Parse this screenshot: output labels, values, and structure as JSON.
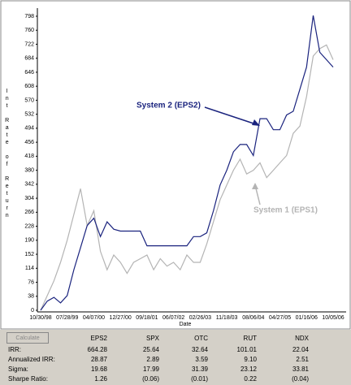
{
  "chart_data": {
    "type": "line",
    "x_label": "Date",
    "y_label": "Int Rate of Return",
    "categories": [
      "10/30/98",
      null,
      null,
      null,
      "07/28/99",
      null,
      null,
      null,
      "04/07/00",
      null,
      null,
      null,
      "12/27/00",
      null,
      null,
      null,
      "09/18/01",
      null,
      null,
      null,
      "06/07/02",
      null,
      null,
      null,
      "02/26/03",
      null,
      null,
      null,
      "11/18/03",
      null,
      null,
      null,
      "08/06/04",
      null,
      null,
      null,
      "04/27/05",
      null,
      null,
      null,
      "01/16/06",
      null,
      null,
      null,
      "10/05/06"
    ],
    "series": [
      {
        "name": "System 1 (EPS1)",
        "color": "#b4b4b4",
        "values": [
          0,
          40,
          80,
          130,
          190,
          260,
          330,
          230,
          270,
          160,
          110,
          150,
          130,
          100,
          130,
          140,
          150,
          110,
          140,
          120,
          130,
          110,
          150,
          130,
          130,
          180,
          240,
          300,
          340,
          380,
          410,
          370,
          380,
          400,
          360,
          380,
          400,
          420,
          480,
          500,
          580,
          690,
          710,
          720,
          680
        ]
      },
      {
        "name": "System 2 (EPS2)",
        "color": "#1a237e",
        "values": [
          0,
          25,
          35,
          20,
          40,
          110,
          170,
          230,
          250,
          200,
          240,
          220,
          215,
          215,
          215,
          215,
          175,
          175,
          175,
          175,
          175,
          175,
          175,
          200,
          200,
          210,
          270,
          340,
          380,
          430,
          450,
          450,
          420,
          520,
          520,
          490,
          490,
          530,
          540,
          600,
          660,
          800,
          700,
          680,
          660
        ]
      }
    ],
    "ylim": [
      0,
      820
    ],
    "yticks": [
      0,
      38,
      76,
      114,
      152,
      190,
      228,
      266,
      304,
      342,
      380,
      418,
      456,
      494,
      532,
      570,
      608,
      646,
      684,
      722,
      760,
      798
    ]
  },
  "table": {
    "button": "Calculate",
    "header": [
      "EPS2",
      "SPX",
      "OTC",
      "RUT",
      "NDX"
    ],
    "rows": [
      [
        "IRR:",
        "664.28",
        "25.64",
        "32.64",
        "101.01",
        "22.04"
      ],
      [
        "Annualized IRR:",
        "28.87",
        "2.89",
        "3.59",
        "9.10",
        "2.51"
      ],
      [
        "Sigma:",
        "19.68",
        "17.99",
        "31.39",
        "23.12",
        "33.81"
      ],
      [
        "Sharpe Ratio:",
        "1.26",
        "(0.06)",
        "(0.01)",
        "0.22",
        "(0.04)"
      ]
    ]
  }
}
